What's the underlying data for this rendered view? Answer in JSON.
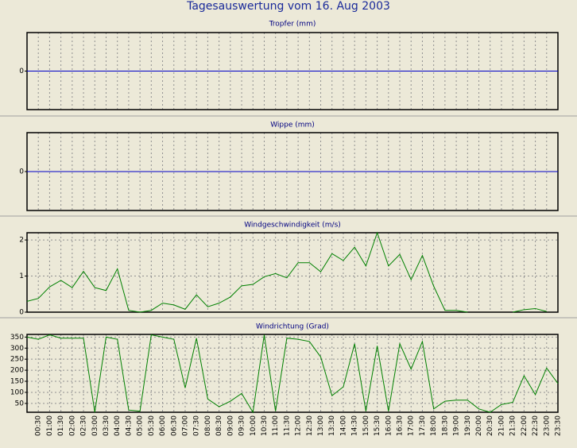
{
  "title": "Tagesauswertung vom 16. Aug 2003",
  "chart_data": [
    {
      "type": "line",
      "title": "Tropfer (mm)",
      "color": "#0000c8",
      "ylim": [
        -1,
        1
      ],
      "yticks": [
        0
      ],
      "values": [
        0,
        0,
        0,
        0,
        0,
        0,
        0,
        0,
        0,
        0,
        0,
        0,
        0,
        0,
        0,
        0,
        0,
        0,
        0,
        0,
        0,
        0,
        0,
        0,
        0,
        0,
        0,
        0,
        0,
        0,
        0,
        0,
        0,
        0,
        0,
        0,
        0,
        0,
        0,
        0,
        0,
        0,
        0,
        0,
        0,
        0,
        0,
        0
      ]
    },
    {
      "type": "line",
      "title": "Wippe (mm)",
      "color": "#0000c8",
      "ylim": [
        -1,
        1
      ],
      "yticks": [
        0
      ],
      "values": [
        0,
        0,
        0,
        0,
        0,
        0,
        0,
        0,
        0,
        0,
        0,
        0,
        0,
        0,
        0,
        0,
        0,
        0,
        0,
        0,
        0,
        0,
        0,
        0,
        0,
        0,
        0,
        0,
        0,
        0,
        0,
        0,
        0,
        0,
        0,
        0,
        0,
        0,
        0,
        0,
        0,
        0,
        0,
        0,
        0,
        0,
        0,
        0
      ]
    },
    {
      "type": "line",
      "title": "Windgeschwindigkeit (m/s)",
      "color": "#008000",
      "ylim": [
        0,
        2.2
      ],
      "yticks": [
        0,
        1,
        2
      ],
      "grid": true,
      "values": [
        0.3,
        0.38,
        0.7,
        0.88,
        0.68,
        1.13,
        0.68,
        0.6,
        1.2,
        0.05,
        0,
        0.05,
        0.25,
        0.2,
        0.08,
        0.48,
        0.15,
        0.25,
        0.42,
        0.73,
        0.77,
        0.98,
        1.07,
        0.95,
        1.37,
        1.37,
        1.12,
        1.62,
        1.43,
        1.8,
        1.28,
        2.2,
        1.28,
        1.6,
        0.9,
        1.57,
        0.72,
        0.05,
        0.05,
        0,
        null,
        null,
        null,
        0,
        0.07,
        0.1,
        0.02,
        null
      ]
    },
    {
      "type": "line",
      "title": "Windrichtung (Grad)",
      "color": "#008000",
      "ylim": [
        10,
        362
      ],
      "yticks": [
        50,
        100,
        150,
        200,
        250,
        300,
        350
      ],
      "grid": true,
      "values": [
        350,
        340,
        360,
        345,
        345,
        345,
        10,
        350,
        340,
        20,
        15,
        360,
        350,
        340,
        120,
        345,
        70,
        35,
        60,
        95,
        10,
        360,
        15,
        345,
        340,
        330,
        260,
        85,
        125,
        320,
        15,
        310,
        15,
        320,
        205,
        330,
        25,
        60,
        65,
        65,
        25,
        10,
        45,
        55,
        175,
        90,
        210,
        140
      ],
      "categories": [
        null,
        "00:30",
        "01:00",
        "01:30",
        "02:00",
        "02:30",
        "03:00",
        "03:30",
        "04:00",
        "04:30",
        "05:00",
        "05:30",
        "06:00",
        "06:30",
        "07:00",
        "07:30",
        "08:00",
        "08:30",
        "09:00",
        "09:30",
        "10:00",
        "10:30",
        "11:00",
        "11:30",
        "12:00",
        "12:30",
        "13:00",
        "13:30",
        "14:00",
        "14:30",
        "15:00",
        "15:30",
        "16:00",
        "16:30",
        "17:00",
        "17:30",
        "18:00",
        "18:30",
        "19:00",
        "19:30",
        "20:00",
        "20:30",
        "21:00",
        "21:30",
        "22:00",
        "22:30",
        "23:00",
        "23:30"
      ]
    }
  ]
}
